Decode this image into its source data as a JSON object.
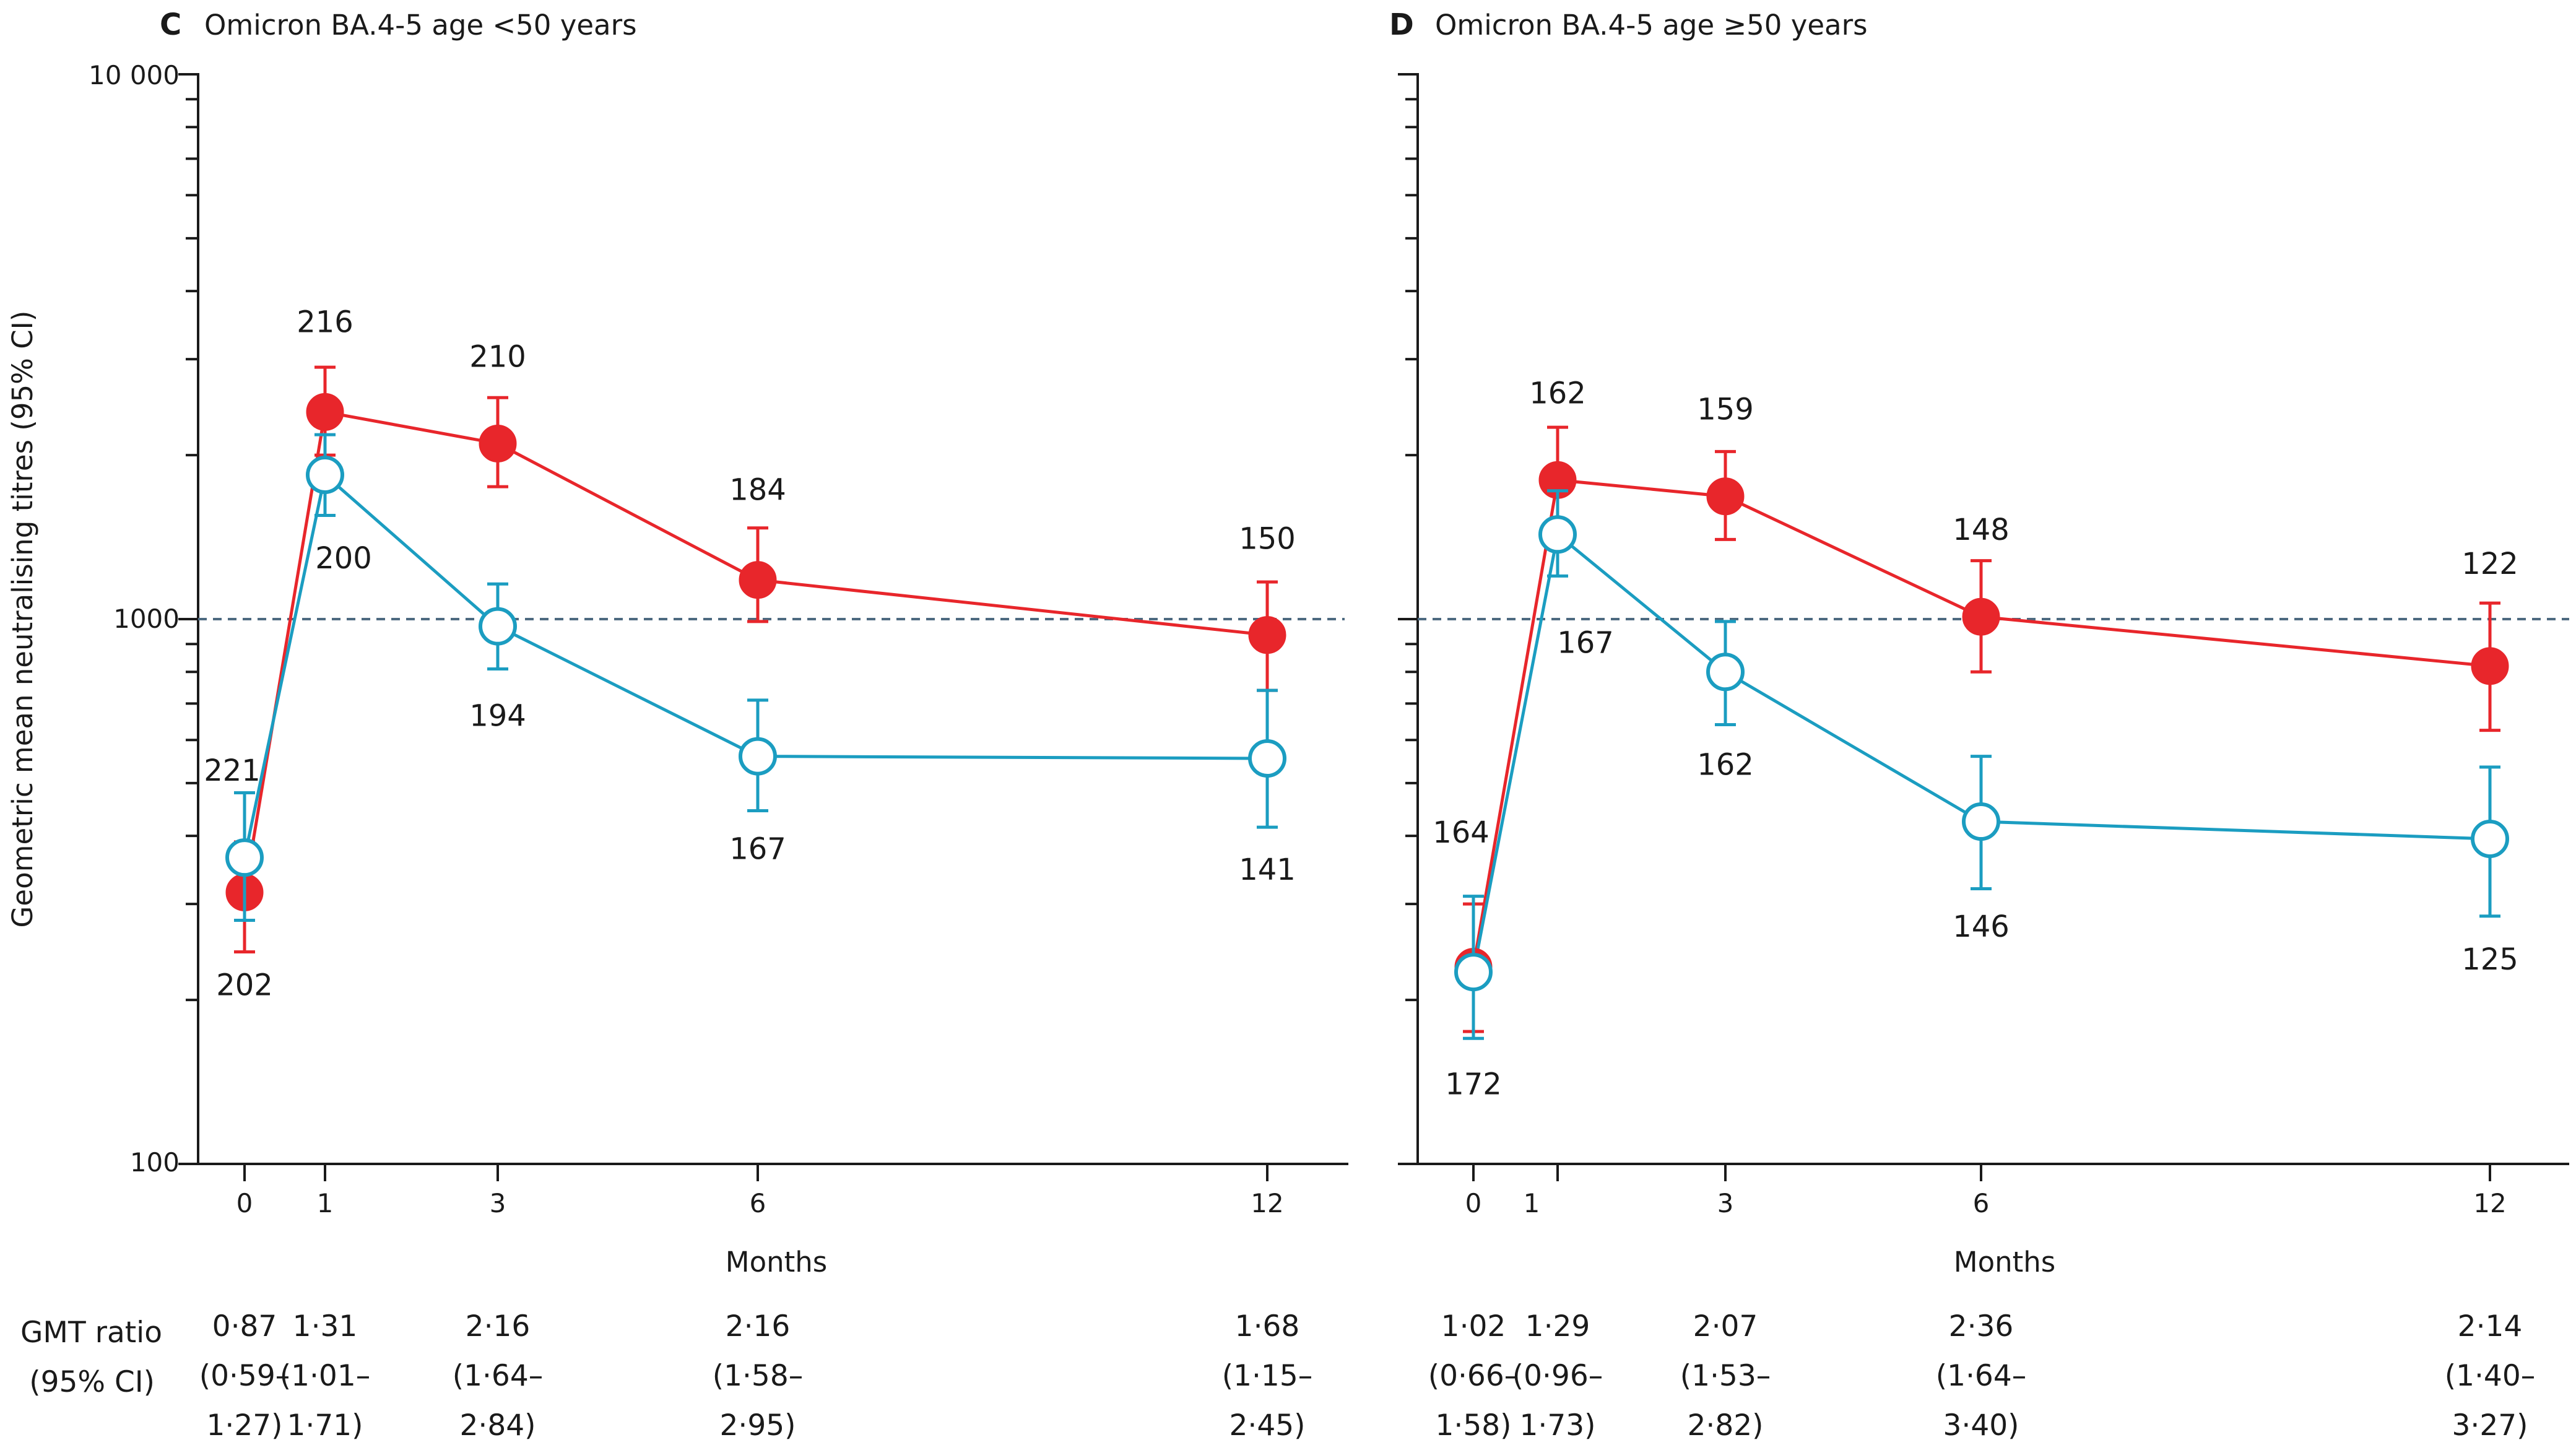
{
  "colors": {
    "red_series": "#e8262b",
    "blue_series": "#1b9dc1",
    "reference_line": "#4d6a80"
  },
  "axis": {
    "ylabel": "Geometric mean neutralising titres (95% CI)",
    "xlabel": "Months",
    "y_ticks": [
      "100",
      "1000",
      "10 000"
    ],
    "x_ticks_left": [
      "0",
      "1",
      "3",
      "6",
      "12"
    ],
    "x_ticks_right": [
      "0",
      "1",
      "3",
      "6",
      "12"
    ]
  },
  "ratio_header": {
    "line1": "GMT ratio",
    "line2": "(95% CI)"
  },
  "chart_data": [
    {
      "type": "line",
      "panel": "C",
      "title": "Omicron BA.4-5 age <50 years",
      "y_scale": "log",
      "ylim": [
        100,
        10000
      ],
      "xlabel": "Months",
      "ylabel": "Geometric mean neutralising titres (95% CI)",
      "reference_line_y": 1000,
      "series": [
        {
          "color": "#e8262b",
          "marker": "filled-circle",
          "points": [
            {
              "x": 0,
              "y": 315,
              "lo": 245,
              "hi": 390,
              "n": "202"
            },
            {
              "x": 1,
              "y": 2400,
              "lo": 2000,
              "hi": 2900,
              "n": "216"
            },
            {
              "x": 3,
              "y": 2100,
              "lo": 1750,
              "hi": 2550,
              "n": "210"
            },
            {
              "x": 6,
              "y": 1180,
              "lo": 990,
              "hi": 1470,
              "n": "184"
            },
            {
              "x": 12,
              "y": 935,
              "lo": 740,
              "hi": 1170,
              "n": "150"
            }
          ]
        },
        {
          "color": "#1b9dc1",
          "marker": "open-circle",
          "points": [
            {
              "x": 0,
              "y": 365,
              "lo": 280,
              "hi": 480,
              "n": "221"
            },
            {
              "x": 1,
              "y": 1840,
              "lo": 1550,
              "hi": 2180,
              "n": "200"
            },
            {
              "x": 3,
              "y": 970,
              "lo": 810,
              "hi": 1160,
              "n": "194"
            },
            {
              "x": 6,
              "y": 560,
              "lo": 445,
              "hi": 710,
              "n": "167"
            },
            {
              "x": 12,
              "y": 555,
              "lo": 415,
              "hi": 740,
              "n": "141"
            }
          ]
        }
      ],
      "gmt_ratios": [
        {
          "x": 0,
          "value": "0·87",
          "ci_lo": "(0·59–",
          "ci_hi": "1·27)"
        },
        {
          "x": 1,
          "value": "1·31",
          "ci_lo": "(1·01–",
          "ci_hi": "1·71)"
        },
        {
          "x": 3,
          "value": "2·16",
          "ci_lo": "(1·64–",
          "ci_hi": "2·84)"
        },
        {
          "x": 6,
          "value": "2·16",
          "ci_lo": "(1·58–",
          "ci_hi": "2·95)"
        },
        {
          "x": 12,
          "value": "1·68",
          "ci_lo": "(1·15–",
          "ci_hi": "2·45)"
        }
      ]
    },
    {
      "type": "line",
      "panel": "D",
      "title": "Omicron BA.4-5 age ≥50 years",
      "y_scale": "log",
      "ylim": [
        100,
        10000
      ],
      "xlabel": "Months",
      "reference_line_y": 1000,
      "series": [
        {
          "color": "#e8262b",
          "marker": "filled-circle",
          "points": [
            {
              "x": 0,
              "y": 230,
              "lo": 175,
              "hi": 300,
              "n": "172"
            },
            {
              "x": 1,
              "y": 1800,
              "lo": 1500,
              "hi": 2250,
              "n": "162"
            },
            {
              "x": 3,
              "y": 1680,
              "lo": 1400,
              "hi": 2030,
              "n": "159"
            },
            {
              "x": 6,
              "y": 1010,
              "lo": 800,
              "hi": 1280,
              "n": "148"
            },
            {
              "x": 12,
              "y": 820,
              "lo": 625,
              "hi": 1070,
              "n": "122"
            }
          ]
        },
        {
          "color": "#1b9dc1",
          "marker": "open-circle",
          "points": [
            {
              "x": 0,
              "y": 225,
              "lo": 170,
              "hi": 310,
              "n": "164"
            },
            {
              "x": 1,
              "y": 1430,
              "lo": 1200,
              "hi": 1720,
              "n": "167"
            },
            {
              "x": 3,
              "y": 800,
              "lo": 640,
              "hi": 990,
              "n": "162"
            },
            {
              "x": 6,
              "y": 425,
              "lo": 320,
              "hi": 560,
              "n": "146"
            },
            {
              "x": 12,
              "y": 395,
              "lo": 285,
              "hi": 535,
              "n": "125"
            }
          ]
        }
      ],
      "gmt_ratios": [
        {
          "x": 0,
          "value": "1·02",
          "ci_lo": "(0·66–",
          "ci_hi": "1·58)"
        },
        {
          "x": 1,
          "value": "1·29",
          "ci_lo": "(0·96–",
          "ci_hi": "1·73)"
        },
        {
          "x": 3,
          "value": "2·07",
          "ci_lo": "(1·53–",
          "ci_hi": "2·82)"
        },
        {
          "x": 6,
          "value": "2·36",
          "ci_lo": "(1·64–",
          "ci_hi": "3·40)"
        },
        {
          "x": 12,
          "value": "2·14",
          "ci_lo": "(1·40–",
          "ci_hi": "3·27)"
        }
      ]
    }
  ]
}
